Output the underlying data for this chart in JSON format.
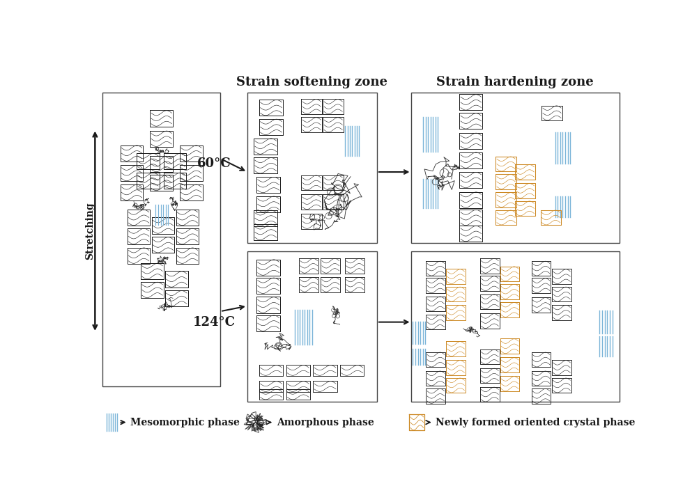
{
  "title_softening": "Strain softening zone",
  "title_hardening": "Strain hardening zone",
  "label_stretching": "Stretching",
  "label_60": "60°C",
  "label_124": "124°C",
  "legend_meso": "Mesomorphic phase",
  "legend_amorph": "Amorphous phase",
  "legend_crystal": "Newly formed oriented crystal phase",
  "color_meso": "#7ab4d8",
  "color_crystal_new": "#cc8822",
  "color_dark": "#1a1a1a",
  "color_gray": "#555555",
  "bg_color": "#ffffff",
  "fig_width": 10.04,
  "fig_height": 7.11,
  "panel_edge": "#444444",
  "panel_lw": 1.0
}
